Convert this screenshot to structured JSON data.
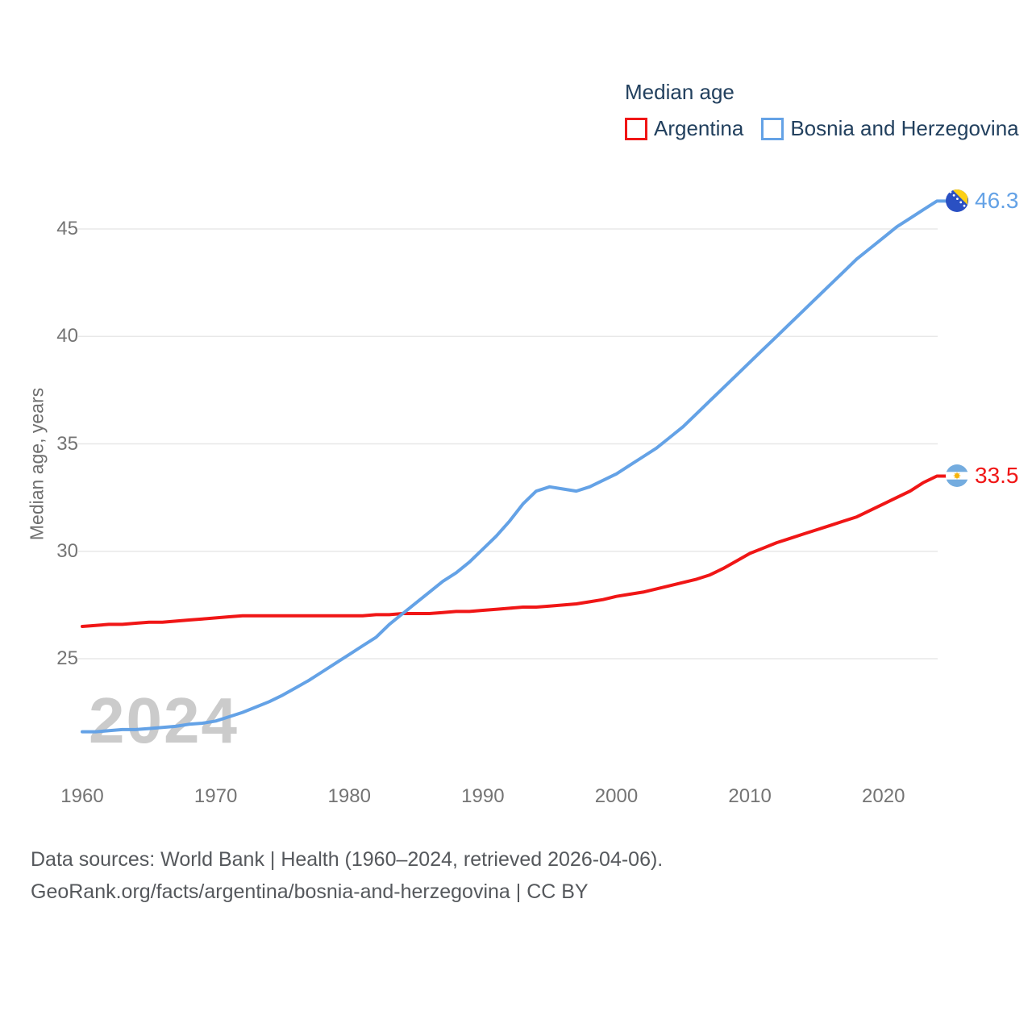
{
  "legend": {
    "title": "Median age",
    "items": [
      {
        "label": "Argentina",
        "color": "#f01616"
      },
      {
        "label": "Bosnia and Herzegovina",
        "color": "#64a2e6"
      }
    ]
  },
  "y_axis": {
    "title": "Median age, years",
    "ticks": [
      45,
      40,
      35,
      30,
      25
    ]
  },
  "x_axis": {
    "ticks": [
      1960,
      1970,
      1980,
      1990,
      2000,
      2010,
      2020
    ]
  },
  "watermark": "2024",
  "end_labels": [
    {
      "series": "Bosnia and Herzegovina",
      "value": "46.3",
      "color": "#64a2e6",
      "flag_icon": "bosnia-and-herzegovina-flag-icon"
    },
    {
      "series": "Argentina",
      "value": "33.5",
      "color": "#f01616",
      "flag_icon": "argentina-flag-icon"
    }
  ],
  "caption": {
    "line1": "Data sources: World Bank | Health (1960–2024, retrieved 2026-04-06).",
    "line2": "GeoRank.org/facts/argentina/bosnia-and-herzegovina | CC BY"
  },
  "chart_data": {
    "type": "line",
    "title": "Median age",
    "xlabel": "",
    "ylabel": "Median age, years",
    "xlim": [
      1960,
      2024
    ],
    "ylim": [
      21,
      47
    ],
    "grid": "horizontal",
    "gridline_values": [
      25,
      30,
      35,
      40,
      45
    ],
    "legend_position": "top-right",
    "x": [
      1960,
      1961,
      1962,
      1963,
      1964,
      1965,
      1966,
      1967,
      1968,
      1969,
      1970,
      1971,
      1972,
      1973,
      1974,
      1975,
      1976,
      1977,
      1978,
      1979,
      1980,
      1981,
      1982,
      1983,
      1984,
      1985,
      1986,
      1987,
      1988,
      1989,
      1990,
      1991,
      1992,
      1993,
      1994,
      1995,
      1996,
      1997,
      1998,
      1999,
      2000,
      2001,
      2002,
      2003,
      2004,
      2005,
      2006,
      2007,
      2008,
      2009,
      2010,
      2011,
      2012,
      2013,
      2014,
      2015,
      2016,
      2017,
      2018,
      2019,
      2020,
      2021,
      2022,
      2023,
      2024
    ],
    "series": [
      {
        "name": "Argentina",
        "color": "#f01616",
        "end_value": 33.5,
        "values": [
          26.5,
          26.55,
          26.6,
          26.6,
          26.65,
          26.7,
          26.7,
          26.75,
          26.8,
          26.85,
          26.9,
          26.95,
          27.0,
          27.0,
          27.0,
          27.0,
          27.0,
          27.0,
          27.0,
          27.0,
          27.0,
          27.0,
          27.05,
          27.05,
          27.1,
          27.1,
          27.1,
          27.15,
          27.2,
          27.2,
          27.25,
          27.3,
          27.35,
          27.4,
          27.4,
          27.45,
          27.5,
          27.55,
          27.65,
          27.75,
          27.9,
          28.0,
          28.1,
          28.25,
          28.4,
          28.55,
          28.7,
          28.9,
          29.2,
          29.55,
          29.9,
          30.15,
          30.4,
          30.6,
          30.8,
          31.0,
          31.2,
          31.4,
          31.6,
          31.9,
          32.2,
          32.5,
          32.8,
          33.2,
          33.5
        ]
      },
      {
        "name": "Bosnia and Herzegovina",
        "color": "#64a2e6",
        "end_value": 46.3,
        "values": [
          21.6,
          21.6,
          21.65,
          21.7,
          21.7,
          21.75,
          21.8,
          21.85,
          21.95,
          22.0,
          22.1,
          22.3,
          22.5,
          22.75,
          23.0,
          23.3,
          23.65,
          24.0,
          24.4,
          24.8,
          25.2,
          25.6,
          26.0,
          26.6,
          27.1,
          27.6,
          28.1,
          28.6,
          29.0,
          29.5,
          30.1,
          30.7,
          31.4,
          32.2,
          32.8,
          33.0,
          32.9,
          32.8,
          33.0,
          33.3,
          33.6,
          34.0,
          34.4,
          34.8,
          35.3,
          35.8,
          36.4,
          37.0,
          37.6,
          38.2,
          38.8,
          39.4,
          40.0,
          40.6,
          41.2,
          41.8,
          42.4,
          43.0,
          43.6,
          44.1,
          44.6,
          45.1,
          45.5,
          45.9,
          46.3
        ]
      }
    ]
  }
}
